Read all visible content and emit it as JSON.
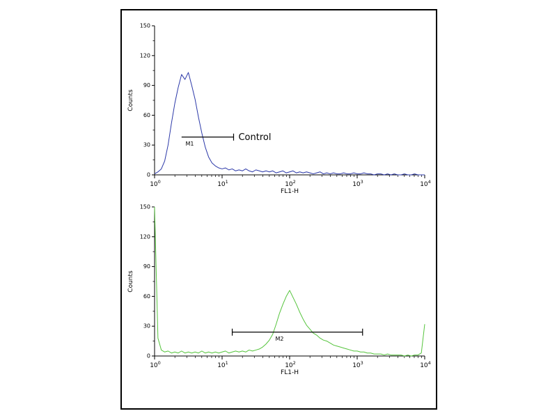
{
  "figure": {
    "border_color": "#000000",
    "background": "#ffffff"
  },
  "chart_data": [
    {
      "type": "line",
      "id": "top-histogram",
      "description": "flow-cytometry-histogram",
      "color": "#2b38a8",
      "axis_color": "#000000",
      "xlabel": "FL1-H",
      "ylabel": "Counts",
      "x_scale": "log10",
      "xlim_log": [
        0,
        4
      ],
      "ylim": [
        0,
        150
      ],
      "yticks": [
        0,
        30,
        60,
        90,
        120,
        150
      ],
      "xtick_exponents": [
        0,
        1,
        2,
        3,
        4
      ],
      "x_log10_start": 0,
      "x_log10_step": 0.05,
      "y": [
        1,
        3,
        6,
        14,
        30,
        52,
        72,
        88,
        101,
        96,
        103,
        90,
        76,
        58,
        42,
        28,
        18,
        12,
        9,
        7,
        6,
        7,
        5,
        6,
        4,
        5,
        4,
        6,
        4,
        3,
        5,
        4,
        3,
        4,
        3,
        4,
        2,
        3,
        4,
        2,
        3,
        4,
        2,
        3,
        2,
        3,
        2,
        1,
        2,
        3,
        1,
        2,
        1,
        2,
        1,
        1,
        2,
        1,
        1,
        2,
        1,
        1,
        2,
        1,
        1,
        0,
        1,
        1,
        0,
        1,
        0,
        1,
        0,
        0,
        1,
        0,
        0,
        1,
        0,
        0,
        0
      ],
      "gate": {
        "label": "M1",
        "y": 38,
        "x1": 0.4,
        "x2": 1.17,
        "ticks": "right",
        "label_x": 0.52,
        "annotation": "Control"
      }
    },
    {
      "type": "line",
      "id": "bottom-histogram",
      "description": "flow-cytometry-histogram",
      "color": "#55c43c",
      "axis_color": "#000000",
      "xlabel": "FL1-H",
      "ylabel": "Counts",
      "x_scale": "log10",
      "xlim_log": [
        0,
        4
      ],
      "ylim": [
        0,
        150
      ],
      "yticks": [
        0,
        30,
        60,
        90,
        120,
        150
      ],
      "xtick_exponents": [
        0,
        1,
        2,
        3,
        4
      ],
      "x_log10_start": 0,
      "x_log10_step": 0.05,
      "y": [
        150,
        18,
        6,
        4,
        5,
        3,
        4,
        3,
        5,
        3,
        4,
        3,
        4,
        3,
        5,
        3,
        4,
        3,
        4,
        3,
        4,
        5,
        3,
        4,
        5,
        4,
        5,
        4,
        6,
        5,
        6,
        7,
        9,
        12,
        16,
        22,
        32,
        43,
        52,
        60,
        66,
        59,
        52,
        44,
        37,
        31,
        27,
        23,
        21,
        18,
        16,
        15,
        13,
        11,
        10,
        9,
        8,
        7,
        6,
        5,
        5,
        4,
        4,
        3,
        3,
        2,
        2,
        2,
        1,
        2,
        1,
        1,
        1,
        1,
        0,
        1,
        0,
        1,
        1,
        3,
        32
      ],
      "gate": {
        "label": "M2",
        "y": 24,
        "x1": 1.15,
        "x2": 3.08,
        "ticks": "both",
        "label_x": 1.85,
        "annotation": ""
      }
    }
  ]
}
